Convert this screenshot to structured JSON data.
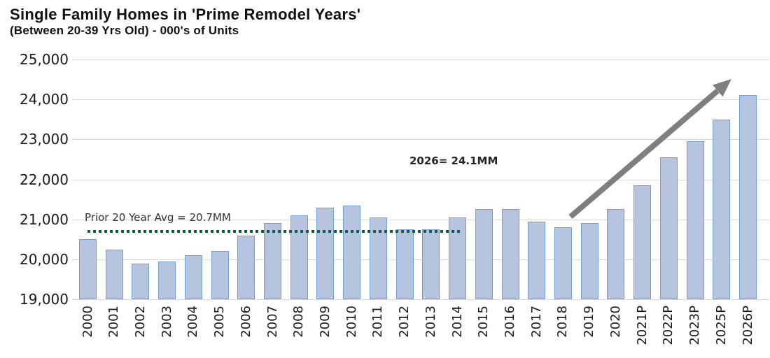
{
  "chart_data": {
    "type": "bar",
    "title": "Single Family Homes in 'Prime Remodel Years'",
    "subtitle": "(Between 20-39 Yrs Old) - 000's of Units",
    "categories": [
      "2000",
      "2001",
      "2002",
      "2003",
      "2004",
      "2005",
      "2006",
      "2007",
      "2008",
      "2009",
      "2010",
      "2011",
      "2012",
      "2013",
      "2014",
      "2015",
      "2016",
      "2017",
      "2018",
      "2019",
      "2020",
      "2021P",
      "2022P",
      "2023P",
      "2025P",
      "2026P"
    ],
    "values": [
      20500,
      20250,
      19900,
      19950,
      20100,
      20200,
      20600,
      20900,
      21100,
      21300,
      21350,
      21050,
      20750,
      20750,
      21050,
      21250,
      21250,
      20950,
      20800,
      20900,
      21250,
      21850,
      22550,
      22950,
      23500,
      24100
    ],
    "xlabel": "",
    "ylabel": "",
    "ylim": [
      19000,
      25000
    ],
    "ytick_step": 1000,
    "ytick_labels": [
      "19,000",
      "20,000",
      "21,000",
      "22,000",
      "23,000",
      "24,000",
      "25,000"
    ],
    "grid": "horizontal-only",
    "legend": "none",
    "annotations": {
      "avg_line": {
        "label": "Prior 20 Year Avg = 20.7MM",
        "value": 20700,
        "style": "dotted"
      },
      "callout": {
        "label": "2026= 24.1MM"
      },
      "trend_arrow": {
        "direction": "up-right",
        "meaning": "projected growth toward 2026"
      }
    },
    "colors": {
      "bar_fill": "#b6c4df",
      "bar_border": "#6fa2d2",
      "avg_line": "#1b5c49",
      "arrow": "#7f7f7f",
      "gridline": "#dadada",
      "text": "#1a1a1a"
    }
  }
}
